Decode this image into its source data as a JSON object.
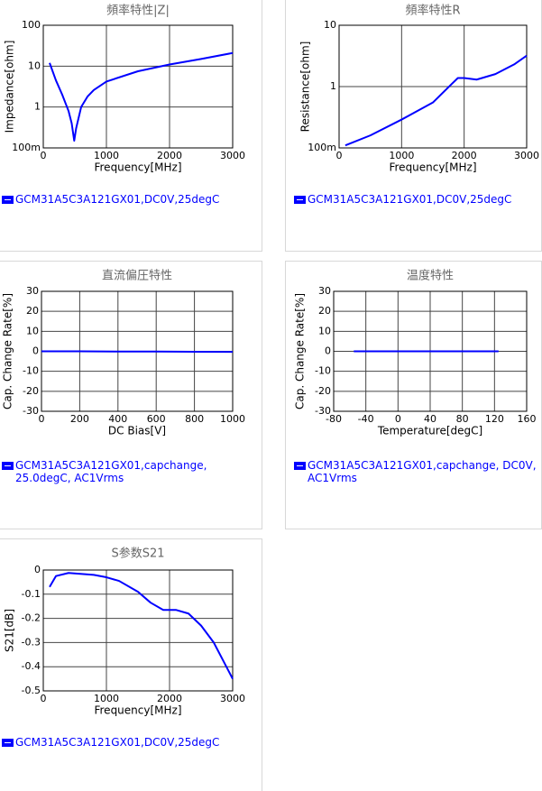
{
  "chart_data": [
    {
      "type": "line",
      "title": "頻率特性|Z|",
      "xlabel": "Frequency[MHz]",
      "ylabel": "Impedance[ohm]",
      "log_y": true,
      "grid": true,
      "xlim": [
        0,
        3000
      ],
      "xticks": [
        0,
        1000,
        2000,
        3000
      ],
      "ylim": [
        0.1,
        100
      ],
      "yticks": [
        {
          "value": 0.1,
          "label": "100m"
        },
        1,
        10,
        100
      ],
      "x": [
        100,
        200,
        300,
        400,
        450,
        490,
        520,
        600,
        700,
        800,
        1000,
        1500,
        2000,
        2500,
        3000
      ],
      "series": [
        {
          "name": "GCM31A5C3A121GX01,DC0V,25degC",
          "color": "#0000ff",
          "values": [
            12,
            4.5,
            2,
            0.8,
            0.4,
            0.15,
            0.3,
            1.0,
            1.8,
            2.6,
            4.2,
            7.5,
            11,
            15,
            21
          ]
        }
      ]
    },
    {
      "type": "line",
      "title": "頻率特性R",
      "xlabel": "Frequency[MHz]",
      "ylabel": "Resistance[ohm]",
      "log_y": true,
      "grid": true,
      "xlim": [
        0,
        3000
      ],
      "xticks": [
        0,
        1000,
        2000,
        3000
      ],
      "ylim": [
        0.1,
        10
      ],
      "yticks": [
        {
          "value": 0.1,
          "label": "100m"
        },
        1,
        10
      ],
      "x": [
        100,
        500,
        1000,
        1500,
        1800,
        1900,
        2000,
        2200,
        2500,
        2800,
        3000
      ],
      "series": [
        {
          "name": "GCM31A5C3A121GX01,DC0V,25degC",
          "color": "#0000ff",
          "values": [
            0.11,
            0.16,
            0.29,
            0.55,
            1.1,
            1.38,
            1.38,
            1.3,
            1.6,
            2.3,
            3.2
          ]
        }
      ]
    },
    {
      "type": "line",
      "title": "直流偏圧特性",
      "xlabel": "DC Bias[V]",
      "ylabel": "Cap. Change Rate[%]",
      "log_y": false,
      "grid": true,
      "xlim": [
        0,
        1000
      ],
      "xticks": [
        0,
        200,
        400,
        600,
        800,
        1000
      ],
      "ylim": [
        -30,
        30
      ],
      "yticks": [
        -30,
        -20,
        -10,
        0,
        10,
        20,
        30
      ],
      "x": [
        0,
        200,
        400,
        600,
        800,
        1000
      ],
      "series": [
        {
          "name": "GCM31A5C3A121GX01,capchange, 25.0degC, AC1Vrms",
          "color": "#0000ff",
          "values": [
            0,
            0,
            -0.1,
            -0.1,
            -0.2,
            -0.3
          ]
        }
      ]
    },
    {
      "type": "line",
      "title": "温度特性",
      "xlabel": "Temperature[degC]",
      "ylabel": "Cap. Change Rate[%]",
      "log_y": false,
      "grid": true,
      "xlim": [
        -80,
        160
      ],
      "xticks": [
        -80,
        -40,
        0,
        40,
        80,
        120,
        160
      ],
      "ylim": [
        -30,
        30
      ],
      "yticks": [
        -30,
        -20,
        -10,
        0,
        10,
        20,
        30
      ],
      "x": [
        -55,
        -25,
        0,
        25,
        85,
        125
      ],
      "series": [
        {
          "name": "GCM31A5C3A121GX01,capchange, DC0V, AC1Vrms",
          "color": "#0000ff",
          "values": [
            0,
            0,
            0,
            0,
            0,
            0
          ]
        }
      ]
    },
    {
      "type": "line",
      "title": "S参数S21",
      "xlabel": "Frequency[MHz]",
      "ylabel": "S21[dB]",
      "log_y": false,
      "grid": true,
      "xlim": [
        0,
        3000
      ],
      "xticks": [
        0,
        1000,
        2000,
        3000
      ],
      "ylim": [
        -0.5,
        0
      ],
      "yticks": [
        -0.5,
        -0.4,
        -0.3,
        -0.2,
        -0.1,
        0
      ],
      "x": [
        100,
        200,
        400,
        800,
        1000,
        1200,
        1500,
        1700,
        1900,
        2100,
        2300,
        2500,
        2700,
        2900,
        3000
      ],
      "series": [
        {
          "name": "GCM31A5C3A121GX01,DC0V,25degC",
          "color": "#0000ff",
          "values": [
            -0.07,
            -0.025,
            -0.012,
            -0.02,
            -0.03,
            -0.045,
            -0.09,
            -0.135,
            -0.165,
            -0.165,
            -0.18,
            -0.23,
            -0.3,
            -0.4,
            -0.45
          ]
        }
      ]
    }
  ]
}
